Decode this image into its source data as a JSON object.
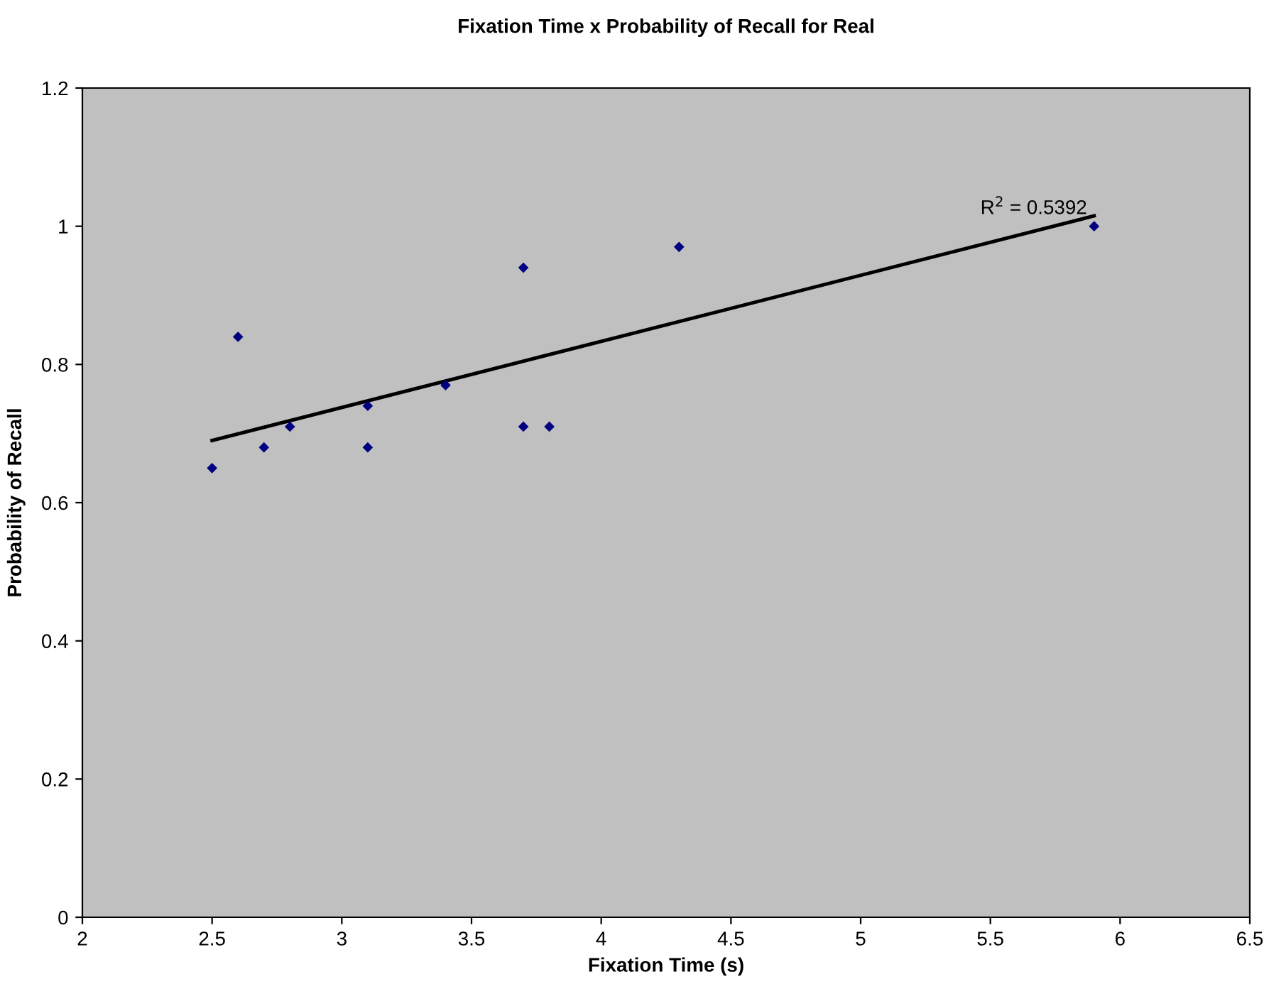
{
  "chart_data": {
    "type": "scatter",
    "title": "Fixation Time x Probability of Recall for Real",
    "xlabel": "Fixation Time (s)",
    "ylabel": "Probability of Recall",
    "series": [
      {
        "color": "#000080",
        "marker": "diamond",
        "x": [
          2.5,
          2.6,
          2.7,
          2.8,
          3.1,
          3.1,
          3.4,
          3.7,
          3.7,
          3.8,
          4.3,
          5.9
        ],
        "values": [
          0.65,
          0.84,
          0.68,
          0.71,
          0.74,
          0.68,
          0.77,
          0.94,
          0.71,
          0.71,
          0.97,
          1.0
        ]
      },
      {
        "type": "line",
        "color": "#000000",
        "marker": "none",
        "line_style": "solid",
        "x": [
          2.5,
          5.9
        ],
        "values": [
          0.69,
          1.015
        ]
      }
    ],
    "annotations": [
      "R$^{2}$ = 0.5392"
    ],
    "xlim": [
      2,
      6.5
    ],
    "xticks": [
      2,
      2.5,
      3,
      3.5,
      4,
      4.5,
      5,
      5.5,
      6,
      6.5
    ],
    "ylim": [
      0,
      1.2
    ],
    "yticks": [
      0,
      0.2,
      0.4,
      0.6,
      0.8,
      1,
      1.2
    ],
    "grid": false
  }
}
